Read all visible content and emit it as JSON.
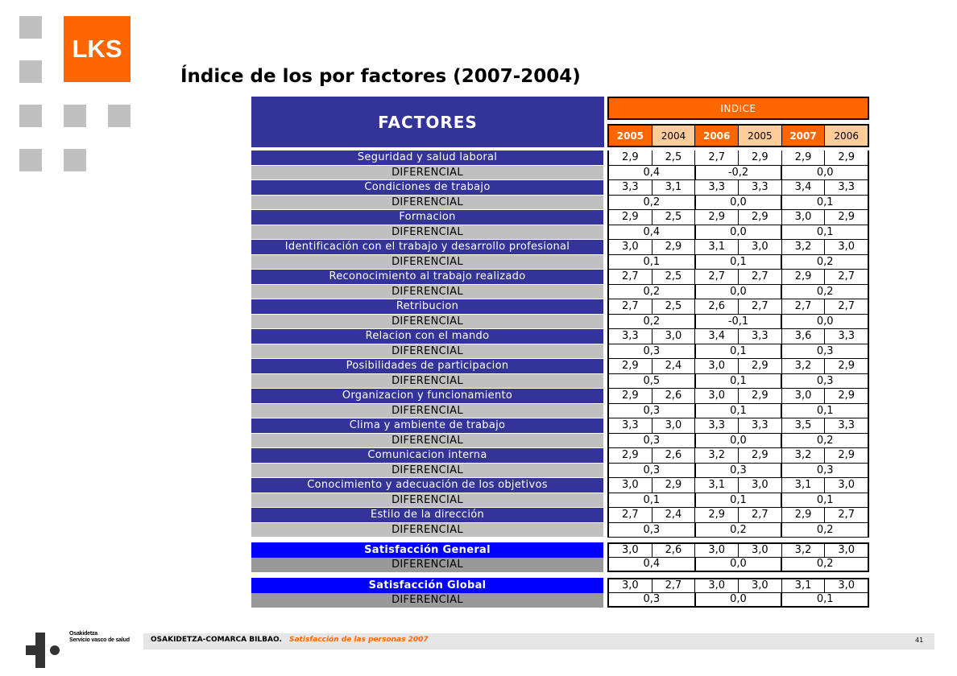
{
  "brand": {
    "logo_text": "LKS",
    "accent": "#ff6600",
    "header_blue": "#333399"
  },
  "title": "Índice de los por factores (2007-2004)",
  "table": {
    "factores_header": "FACTORES",
    "indice_header": "INDICE",
    "years": [
      "2005",
      "2004",
      "2006",
      "2005",
      "2007",
      "2006"
    ],
    "rows": [
      {
        "label": "Seguridad y salud laboral",
        "values": [
          "2,9",
          "2,5",
          "2,7",
          "2,9",
          "2,9",
          "2,9"
        ],
        "diff_label": "DIFERENCIAL",
        "diffs": [
          "0,4",
          "-0,2",
          "0,0"
        ]
      },
      {
        "label": "Condiciones de trabajo",
        "values": [
          "3,3",
          "3,1",
          "3,3",
          "3,3",
          "3,4",
          "3,3"
        ],
        "diff_label": "DIFERENCIAL",
        "diffs": [
          "0,2",
          "0,0",
          "0,1"
        ]
      },
      {
        "label": "Formacion",
        "values": [
          "2,9",
          "2,5",
          "2,9",
          "2,9",
          "3,0",
          "2,9"
        ],
        "diff_label": "DIFERENCIAL",
        "diffs": [
          "0,4",
          "0,0",
          "0,1"
        ]
      },
      {
        "label": "Identificación con el trabajo y desarrollo profesional",
        "values": [
          "3,0",
          "2,9",
          "3,1",
          "3,0",
          "3,2",
          "3,0"
        ],
        "diff_label": "DIFERENCIAL",
        "diffs": [
          "0,1",
          "0,1",
          "0,2"
        ]
      },
      {
        "label": "Reconocimiento al trabajo realizado",
        "values": [
          "2,7",
          "2,5",
          "2,7",
          "2,7",
          "2,9",
          "2,7"
        ],
        "diff_label": "DIFERENCIAL",
        "diffs": [
          "0,2",
          "0,0",
          "0,2"
        ]
      },
      {
        "label": "Retribucion",
        "values": [
          "2,7",
          "2,5",
          "2,6",
          "2,7",
          "2,7",
          "2,7"
        ],
        "diff_label": "DIFERENCIAL",
        "diffs": [
          "0,2",
          "-0,1",
          "0,0"
        ]
      },
      {
        "label": "Relacion con el mando",
        "values": [
          "3,3",
          "3,0",
          "3,4",
          "3,3",
          "3,6",
          "3,3"
        ],
        "diff_label": "DIFERENCIAL",
        "diffs": [
          "0,3",
          "0,1",
          "0,3"
        ]
      },
      {
        "label": "Posibilidades de participacion",
        "values": [
          "2,9",
          "2,4",
          "3,0",
          "2,9",
          "3,2",
          "2,9"
        ],
        "diff_label": "DIFERENCIAL",
        "diffs": [
          "0,5",
          "0,1",
          "0,3"
        ]
      },
      {
        "label": "Organizacion y funcionamiento",
        "values": [
          "2,9",
          "2,6",
          "3,0",
          "2,9",
          "3,0",
          "2,9"
        ],
        "diff_label": "DIFERENCIAL",
        "diffs": [
          "0,3",
          "0,1",
          "0,1"
        ]
      },
      {
        "label": "Clima y ambiente de trabajo",
        "values": [
          "3,3",
          "3,0",
          "3,3",
          "3,3",
          "3,5",
          "3,3"
        ],
        "diff_label": "DIFERENCIAL",
        "diffs": [
          "0,3",
          "0,0",
          "0,2"
        ]
      },
      {
        "label": "Comunicacion interna",
        "values": [
          "2,9",
          "2,6",
          "3,2",
          "2,9",
          "3,2",
          "2,9"
        ],
        "diff_label": "DIFERENCIAL",
        "diffs": [
          "0,3",
          "0,3",
          "0,3"
        ]
      },
      {
        "label": "Conocimiento y adecuación de los objetivos",
        "values": [
          "3,0",
          "2,9",
          "3,1",
          "3,0",
          "3,1",
          "3,0"
        ],
        "diff_label": "DIFERENCIAL",
        "diffs": [
          "0,1",
          "0,1",
          "0,1"
        ]
      },
      {
        "label": "Estilo de la dirección",
        "values": [
          "2,7",
          "2,4",
          "2,9",
          "2,7",
          "2,9",
          "2,7"
        ],
        "diff_label": "DIFERENCIAL",
        "diffs": [
          "0,3",
          "0,2",
          "0,2"
        ]
      }
    ],
    "satisfaccion_general": {
      "label": "Satisfacción General",
      "values": [
        "3,0",
        "2,6",
        "3,0",
        "3,0",
        "3,2",
        "3,0"
      ],
      "diff_label": "DIFERENCIAL",
      "diffs": [
        "0,4",
        "0,0",
        "0,2"
      ]
    },
    "satisfaccion_global": {
      "label": "Satisfacción Global",
      "values": [
        "3,0",
        "2,7",
        "3,0",
        "3,0",
        "3,1",
        "3,0"
      ],
      "diff_label": "DIFERENCIAL",
      "diffs": [
        "0,3",
        "0,0",
        "0,1"
      ]
    }
  },
  "footer": {
    "org": "OSAKIDETZA-COMARCA BILBAO.",
    "subtitle": "Satisfacción  de las personas 2007",
    "page": "41",
    "logo_line1": "Osakidetza",
    "logo_line2": "Servicio vasco de salud"
  }
}
